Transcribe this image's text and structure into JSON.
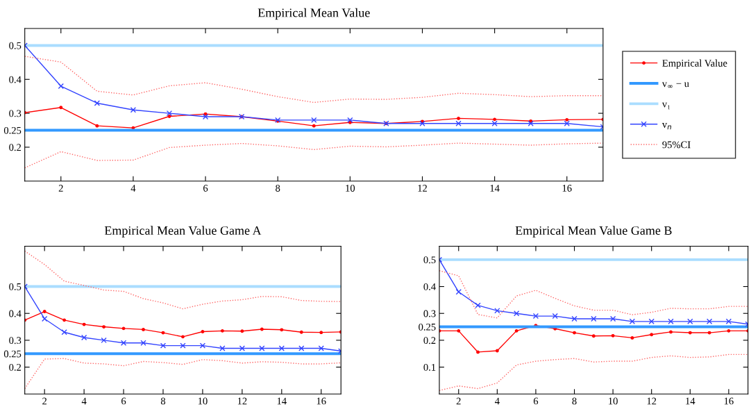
{
  "chart_data": [
    {
      "type": "line",
      "title": "Empirical Mean Value",
      "x": [
        1,
        2,
        3,
        4,
        5,
        6,
        7,
        8,
        9,
        10,
        11,
        12,
        13,
        14,
        15,
        16,
        17
      ],
      "xlim": [
        1,
        17
      ],
      "xticks": [
        2,
        4,
        6,
        8,
        10,
        12,
        14,
        16
      ],
      "ylim": [
        0.1,
        0.55
      ],
      "yticks": [
        0.2,
        0.25,
        0.3,
        0.4,
        0.5
      ],
      "legend": "right",
      "series": [
        {
          "name": "Empirical Value",
          "color": "#ff0000",
          "marker": "circle",
          "line_style": "solid",
          "values": [
            0.302,
            0.317,
            0.263,
            0.257,
            0.291,
            0.298,
            0.29,
            0.277,
            0.263,
            0.273,
            0.27,
            0.276,
            0.285,
            0.282,
            0.277,
            0.281,
            0.282
          ]
        },
        {
          "name": "v$_{∞}$ − u",
          "color": "#3399ff",
          "marker": "none",
          "line_style": "solid",
          "values": [
            0.25,
            0.25,
            0.25,
            0.25,
            0.25,
            0.25,
            0.25,
            0.25,
            0.25,
            0.25,
            0.25,
            0.25,
            0.25,
            0.25,
            0.25,
            0.25,
            0.25
          ]
        },
        {
          "name": "v₁",
          "color": "#aaddff",
          "marker": "none",
          "line_style": "solid",
          "values": [
            0.5,
            0.5,
            0.5,
            0.5,
            0.5,
            0.5,
            0.5,
            0.5,
            0.5,
            0.5,
            0.5,
            0.5,
            0.5,
            0.5,
            0.5,
            0.5,
            0.5
          ]
        },
        {
          "name": "v$_{n}$",
          "color": "#3344ff",
          "marker": "cross",
          "line_style": "solid",
          "values": [
            0.5,
            0.38,
            0.33,
            0.31,
            0.3,
            0.29,
            0.29,
            0.28,
            0.28,
            0.28,
            0.27,
            0.27,
            0.27,
            0.27,
            0.27,
            0.27,
            0.26
          ]
        },
        {
          "name": "95%CI",
          "color": "#ff6666",
          "marker": "none",
          "line_style": "dotted",
          "values": [
            0.468,
            0.451,
            0.365,
            0.354,
            0.381,
            0.39,
            0.371,
            0.349,
            0.332,
            0.342,
            0.341,
            0.347,
            0.359,
            0.355,
            0.349,
            0.352,
            0.352
          ]
        },
        {
          "color": "#ff6666",
          "marker": "none",
          "line_style": "dotted",
          "values": [
            0.139,
            0.187,
            0.161,
            0.162,
            0.199,
            0.206,
            0.211,
            0.204,
            0.193,
            0.203,
            0.201,
            0.206,
            0.212,
            0.209,
            0.206,
            0.21,
            0.212
          ]
        }
      ]
    },
    {
      "type": "line",
      "title": "Empirical Mean Value Game A",
      "x": [
        1,
        2,
        3,
        4,
        5,
        6,
        7,
        8,
        9,
        10,
        11,
        12,
        13,
        14,
        15,
        16,
        17
      ],
      "xlim": [
        1,
        17
      ],
      "xticks": [
        2,
        4,
        6,
        8,
        10,
        12,
        14,
        16
      ],
      "ylim": [
        0.1,
        0.65
      ],
      "yticks": [
        0.2,
        0.25,
        0.3,
        0.4,
        0.5
      ],
      "series": [
        {
          "color": "#ff0000",
          "marker": "circle",
          "line_style": "solid",
          "values": [
            0.375,
            0.407,
            0.375,
            0.359,
            0.35,
            0.344,
            0.34,
            0.328,
            0.313,
            0.332,
            0.335,
            0.334,
            0.341,
            0.339,
            0.33,
            0.329,
            0.331
          ]
        },
        {
          "color": "#3399ff",
          "marker": "none",
          "line_style": "solid",
          "values": [
            0.25,
            0.25,
            0.25,
            0.25,
            0.25,
            0.25,
            0.25,
            0.25,
            0.25,
            0.25,
            0.25,
            0.25,
            0.25,
            0.25,
            0.25,
            0.25,
            0.25
          ]
        },
        {
          "color": "#aaddff",
          "marker": "none",
          "line_style": "solid",
          "values": [
            0.5,
            0.5,
            0.5,
            0.5,
            0.5,
            0.5,
            0.5,
            0.5,
            0.5,
            0.5,
            0.5,
            0.5,
            0.5,
            0.5,
            0.5,
            0.5,
            0.5
          ]
        },
        {
          "color": "#3344ff",
          "marker": "cross",
          "line_style": "solid",
          "values": [
            0.5,
            0.38,
            0.33,
            0.31,
            0.3,
            0.29,
            0.29,
            0.28,
            0.28,
            0.28,
            0.27,
            0.27,
            0.27,
            0.27,
            0.27,
            0.27,
            0.26
          ]
        },
        {
          "color": "#ff6666",
          "marker": "none",
          "line_style": "dotted",
          "values": [
            0.632,
            0.582,
            0.52,
            0.504,
            0.487,
            0.482,
            0.455,
            0.439,
            0.417,
            0.434,
            0.446,
            0.451,
            0.463,
            0.462,
            0.448,
            0.445,
            0.444
          ]
        },
        {
          "color": "#ff6666",
          "marker": "none",
          "line_style": "dotted",
          "values": [
            0.12,
            0.23,
            0.232,
            0.215,
            0.212,
            0.205,
            0.221,
            0.217,
            0.21,
            0.228,
            0.224,
            0.215,
            0.22,
            0.218,
            0.212,
            0.212,
            0.216
          ]
        }
      ]
    },
    {
      "type": "line",
      "title": "Empirical Mean Value Game B",
      "x": [
        1,
        2,
        3,
        4,
        5,
        6,
        7,
        8,
        9,
        10,
        11,
        12,
        13,
        14,
        15,
        16,
        17
      ],
      "xlim": [
        1,
        17
      ],
      "xticks": [
        2,
        4,
        6,
        8,
        10,
        12,
        14,
        16
      ],
      "ylim": [
        0.0,
        0.55
      ],
      "yticks": [
        0.1,
        0.2,
        0.25,
        0.3,
        0.4,
        0.5
      ],
      "series": [
        {
          "color": "#ff0000",
          "marker": "circle",
          "line_style": "solid",
          "values": [
            0.235,
            0.235,
            0.156,
            0.161,
            0.235,
            0.255,
            0.243,
            0.228,
            0.216,
            0.217,
            0.209,
            0.221,
            0.231,
            0.228,
            0.228,
            0.235,
            0.235
          ]
        },
        {
          "color": "#3399ff",
          "marker": "none",
          "line_style": "solid",
          "values": [
            0.25,
            0.25,
            0.25,
            0.25,
            0.25,
            0.25,
            0.25,
            0.25,
            0.25,
            0.25,
            0.25,
            0.25,
            0.25,
            0.25,
            0.25,
            0.25,
            0.25
          ]
        },
        {
          "color": "#aaddff",
          "marker": "none",
          "line_style": "solid",
          "values": [
            0.5,
            0.5,
            0.5,
            0.5,
            0.5,
            0.5,
            0.5,
            0.5,
            0.5,
            0.5,
            0.5,
            0.5,
            0.5,
            0.5,
            0.5,
            0.5,
            0.5
          ]
        },
        {
          "color": "#3344ff",
          "marker": "cross",
          "line_style": "solid",
          "values": [
            0.5,
            0.38,
            0.33,
            0.31,
            0.3,
            0.29,
            0.29,
            0.28,
            0.28,
            0.28,
            0.27,
            0.27,
            0.27,
            0.27,
            0.27,
            0.27,
            0.26
          ]
        },
        {
          "color": "#ff6666",
          "marker": "none",
          "line_style": "dotted",
          "values": [
            0.459,
            0.44,
            0.296,
            0.283,
            0.365,
            0.386,
            0.356,
            0.328,
            0.312,
            0.312,
            0.295,
            0.304,
            0.319,
            0.317,
            0.317,
            0.326,
            0.326
          ]
        },
        {
          "color": "#ff6666",
          "marker": "none",
          "line_style": "dotted",
          "values": [
            0.013,
            0.03,
            0.02,
            0.041,
            0.108,
            0.122,
            0.128,
            0.132,
            0.119,
            0.122,
            0.122,
            0.136,
            0.142,
            0.136,
            0.138,
            0.147,
            0.147
          ]
        }
      ]
    }
  ]
}
